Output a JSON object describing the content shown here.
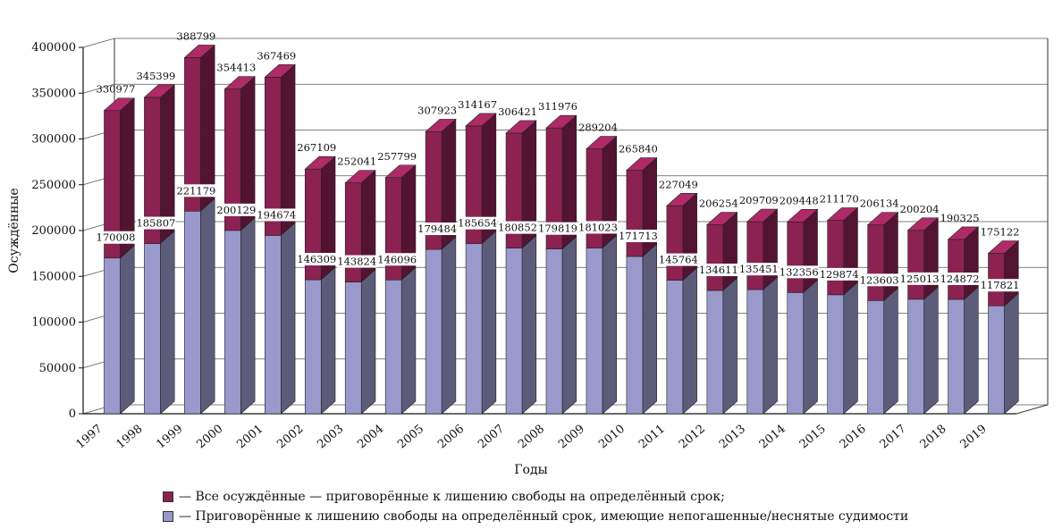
{
  "chart_data": {
    "type": "bar",
    "stacked_3d": true,
    "title": "",
    "xlabel": "Годы",
    "ylabel": "Осуждённые",
    "ylim": [
      0,
      400000
    ],
    "yticks": [
      0,
      50000,
      100000,
      150000,
      200000,
      250000,
      300000,
      350000,
      400000
    ],
    "grid": true,
    "categories": [
      "1997",
      "1998",
      "1999",
      "2000",
      "2001",
      "2002",
      "2003",
      "2004",
      "2005",
      "2006",
      "2007",
      "2008",
      "2009",
      "2010",
      "2011",
      "2012",
      "2013",
      "2014",
      "2015",
      "2016",
      "2017",
      "2018",
      "2019"
    ],
    "series": [
      {
        "name": "— Все осуждённые — приговорённые к лишению свободы на определённый срок;",
        "color": "#8B2252",
        "values": [
          330977,
          345399,
          388799,
          354413,
          367469,
          267109,
          252041,
          257799,
          307923,
          314167,
          306421,
          311976,
          289204,
          265840,
          227049,
          206254,
          209709,
          209448,
          211170,
          206134,
          200204,
          190325,
          175122
        ]
      },
      {
        "name": "— Приговорённые к лишению свободы на определённый срок, имеющие непогашенные/неснятые судимости",
        "color": "#9999CC",
        "values": [
          170008,
          185807,
          221179,
          200129,
          194674,
          146309,
          143824,
          146096,
          179484,
          185654,
          180852,
          179819,
          181023,
          171713,
          145764,
          134611,
          135451,
          132356,
          129874,
          123603,
          125013,
          124872,
          117821
        ]
      }
    ]
  }
}
